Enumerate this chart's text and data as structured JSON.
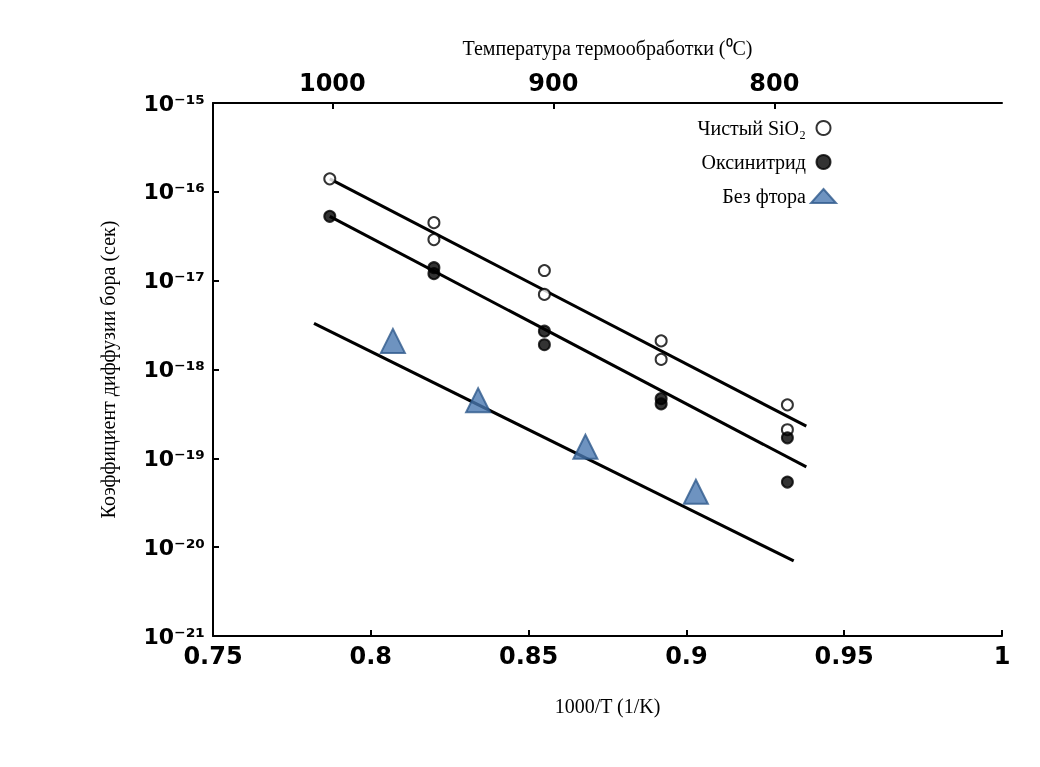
{
  "chart_data": {
    "type": "scatter",
    "xlabel": "1000/T (1/K)",
    "ylabel": "Коэффициент диффузии бора (сек)",
    "x2label": "Температура термообработки (⁰C)",
    "xlim": [
      0.75,
      1
    ],
    "xticks": [
      {
        "value": 0.75,
        "label": "0.75"
      },
      {
        "value": 0.8,
        "label": "0.8"
      },
      {
        "value": 0.85,
        "label": "0.85"
      },
      {
        "value": 0.9,
        "label": "0.9"
      },
      {
        "value": 0.95,
        "label": "0.95"
      },
      {
        "value": 1,
        "label": "1"
      }
    ],
    "x2lim": [
      1054,
      697
    ],
    "x2ticks": [
      1000,
      900,
      800
    ],
    "ylim": [
      1e-21,
      1e-15
    ],
    "log": "y",
    "yticks": [
      {
        "value": 1e-21,
        "label": "10⁻²¹"
      },
      {
        "value": 1e-20,
        "label": "10⁻²⁰"
      },
      {
        "value": 1e-19,
        "label": "10⁻¹⁹"
      },
      {
        "value": 1e-18,
        "label": "10⁻¹⁸"
      },
      {
        "value": 1e-17,
        "label": "10⁻¹⁷"
      },
      {
        "value": 1e-16,
        "label": "10⁻¹⁶"
      },
      {
        "value": 1e-15,
        "label": "10⁻¹⁵"
      }
    ],
    "grid": false,
    "legend": "top right",
    "series": [
      {
        "name": "Чистый SiO₂",
        "color": "#ffffff",
        "marker": "circle",
        "x": [
          0.787,
          0.82,
          0.82,
          0.855,
          0.855,
          0.892,
          0.892,
          0.932,
          0.932
        ],
        "values": [
          1.4e-16,
          4.5e-17,
          2.9e-17,
          1.3e-17,
          7e-18,
          2.1e-18,
          1.3e-18,
          4e-19,
          2.1e-19
        ]
      },
      {
        "name": "Оксинитрид",
        "color": "#000000",
        "marker": "circle",
        "x": [
          0.787,
          0.82,
          0.82,
          0.855,
          0.855,
          0.892,
          0.892,
          0.932,
          0.932
        ],
        "values": [
          5.3e-17,
          1.4e-17,
          1.2e-17,
          2.7e-18,
          1.9e-18,
          4.7e-19,
          4.1e-19,
          1.7e-19,
          5.4e-20
        ]
      },
      {
        "name": "Без фтора",
        "color": "#4a78b0",
        "marker": "triangle",
        "x": [
          0.807,
          0.834,
          0.868,
          0.903
        ],
        "values": [
          2.1e-18,
          4.5e-19,
          1.35e-19,
          4.2e-20
        ]
      },
      {
        "type": "line",
        "color": "#000000",
        "marker": "none",
        "x": [
          0.787,
          0.938
        ],
        "values": [
          1.4e-16,
          2.3e-19
        ]
      },
      {
        "type": "line",
        "color": "#000000",
        "marker": "none",
        "x": [
          0.787,
          0.938
        ],
        "values": [
          5.3e-17,
          8e-20
        ]
      },
      {
        "type": "line",
        "color": "#000000",
        "marker": "none",
        "x": [
          0.782,
          0.934
        ],
        "values": [
          3.3e-18,
          7e-21
        ]
      }
    ]
  }
}
